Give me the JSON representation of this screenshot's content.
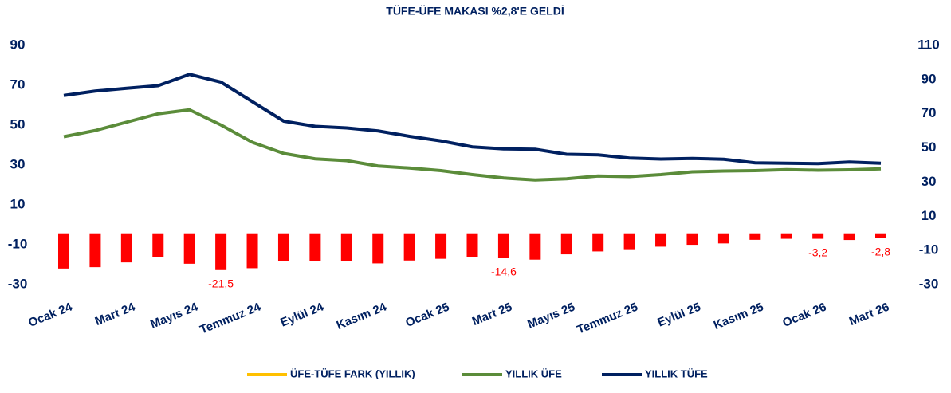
{
  "chart_data": {
    "type": "combo",
    "title": "TÜFE-ÜFE MAKASI %2,8'E GELDİ",
    "categories": [
      "Ocak 24",
      null,
      "Mart 24",
      null,
      "Mayıs 24",
      null,
      "Temmuz 24",
      null,
      "Eylül 24",
      null,
      "Kasım 24",
      null,
      "Ocak 25",
      null,
      "Mart 25",
      null,
      "Mayıs 25",
      null,
      "Temmuz 25",
      null,
      "Eylül 25",
      null,
      "Kasım 25",
      null,
      "Ocak 26",
      null,
      "Mart 26"
    ],
    "series": [
      {
        "name": "ÜFE-TÜFE FARK (YILLIK)",
        "type": "bar",
        "axis": "y2",
        "color": "#ffc000",
        "bar_color": "#ff0000",
        "values": [
          -20.6,
          -19.8,
          -17.0,
          -14.1,
          -17.8,
          -21.5,
          -20.4,
          -16.2,
          -16.3,
          -16.3,
          -17.6,
          -15.9,
          -14.9,
          -13.8,
          -14.6,
          -15.4,
          -12.3,
          -10.6,
          -9.3,
          -7.8,
          -6.7,
          -5.9,
          -3.8,
          -3.2,
          -3.2,
          -3.9,
          -2.8
        ],
        "value_labels": [
          null,
          null,
          null,
          null,
          null,
          "-21,5",
          null,
          null,
          null,
          null,
          null,
          null,
          null,
          null,
          "-14,6",
          null,
          null,
          null,
          null,
          null,
          null,
          null,
          null,
          null,
          "-3,2",
          null,
          "-2,8"
        ]
      },
      {
        "name": "YILLIK ÜFE",
        "type": "line",
        "color": "#5b8c3a",
        "values": [
          44.2,
          47.3,
          51.5,
          55.7,
          57.7,
          50.1,
          41.4,
          35.8,
          33.1,
          32.2,
          29.5,
          28.5,
          27.2,
          25.2,
          23.5,
          22.5,
          23.1,
          24.5,
          24.2,
          25.2,
          26.6,
          27.0,
          27.2,
          27.7,
          27.4,
          27.6,
          28.1
        ]
      },
      {
        "name": "YILLIK TÜFE",
        "type": "line",
        "color": "#002060",
        "values": [
          64.9,
          67.1,
          68.5,
          69.8,
          75.5,
          71.6,
          61.8,
          52.0,
          49.4,
          48.6,
          47.1,
          44.4,
          42.1,
          39.1,
          38.1,
          37.9,
          35.4,
          35.1,
          33.5,
          33.0,
          33.3,
          32.9,
          31.1,
          30.9,
          30.7,
          31.5,
          30.9
        ]
      }
    ],
    "ylim": [
      -30,
      90
    ],
    "yticks": [
      -30,
      -10,
      10,
      30,
      50,
      70,
      90
    ],
    "y2lim": [
      -30,
      110
    ],
    "y2ticks": [
      -30,
      -10,
      10,
      30,
      50,
      70,
      90,
      110
    ],
    "legend": "bottom"
  }
}
